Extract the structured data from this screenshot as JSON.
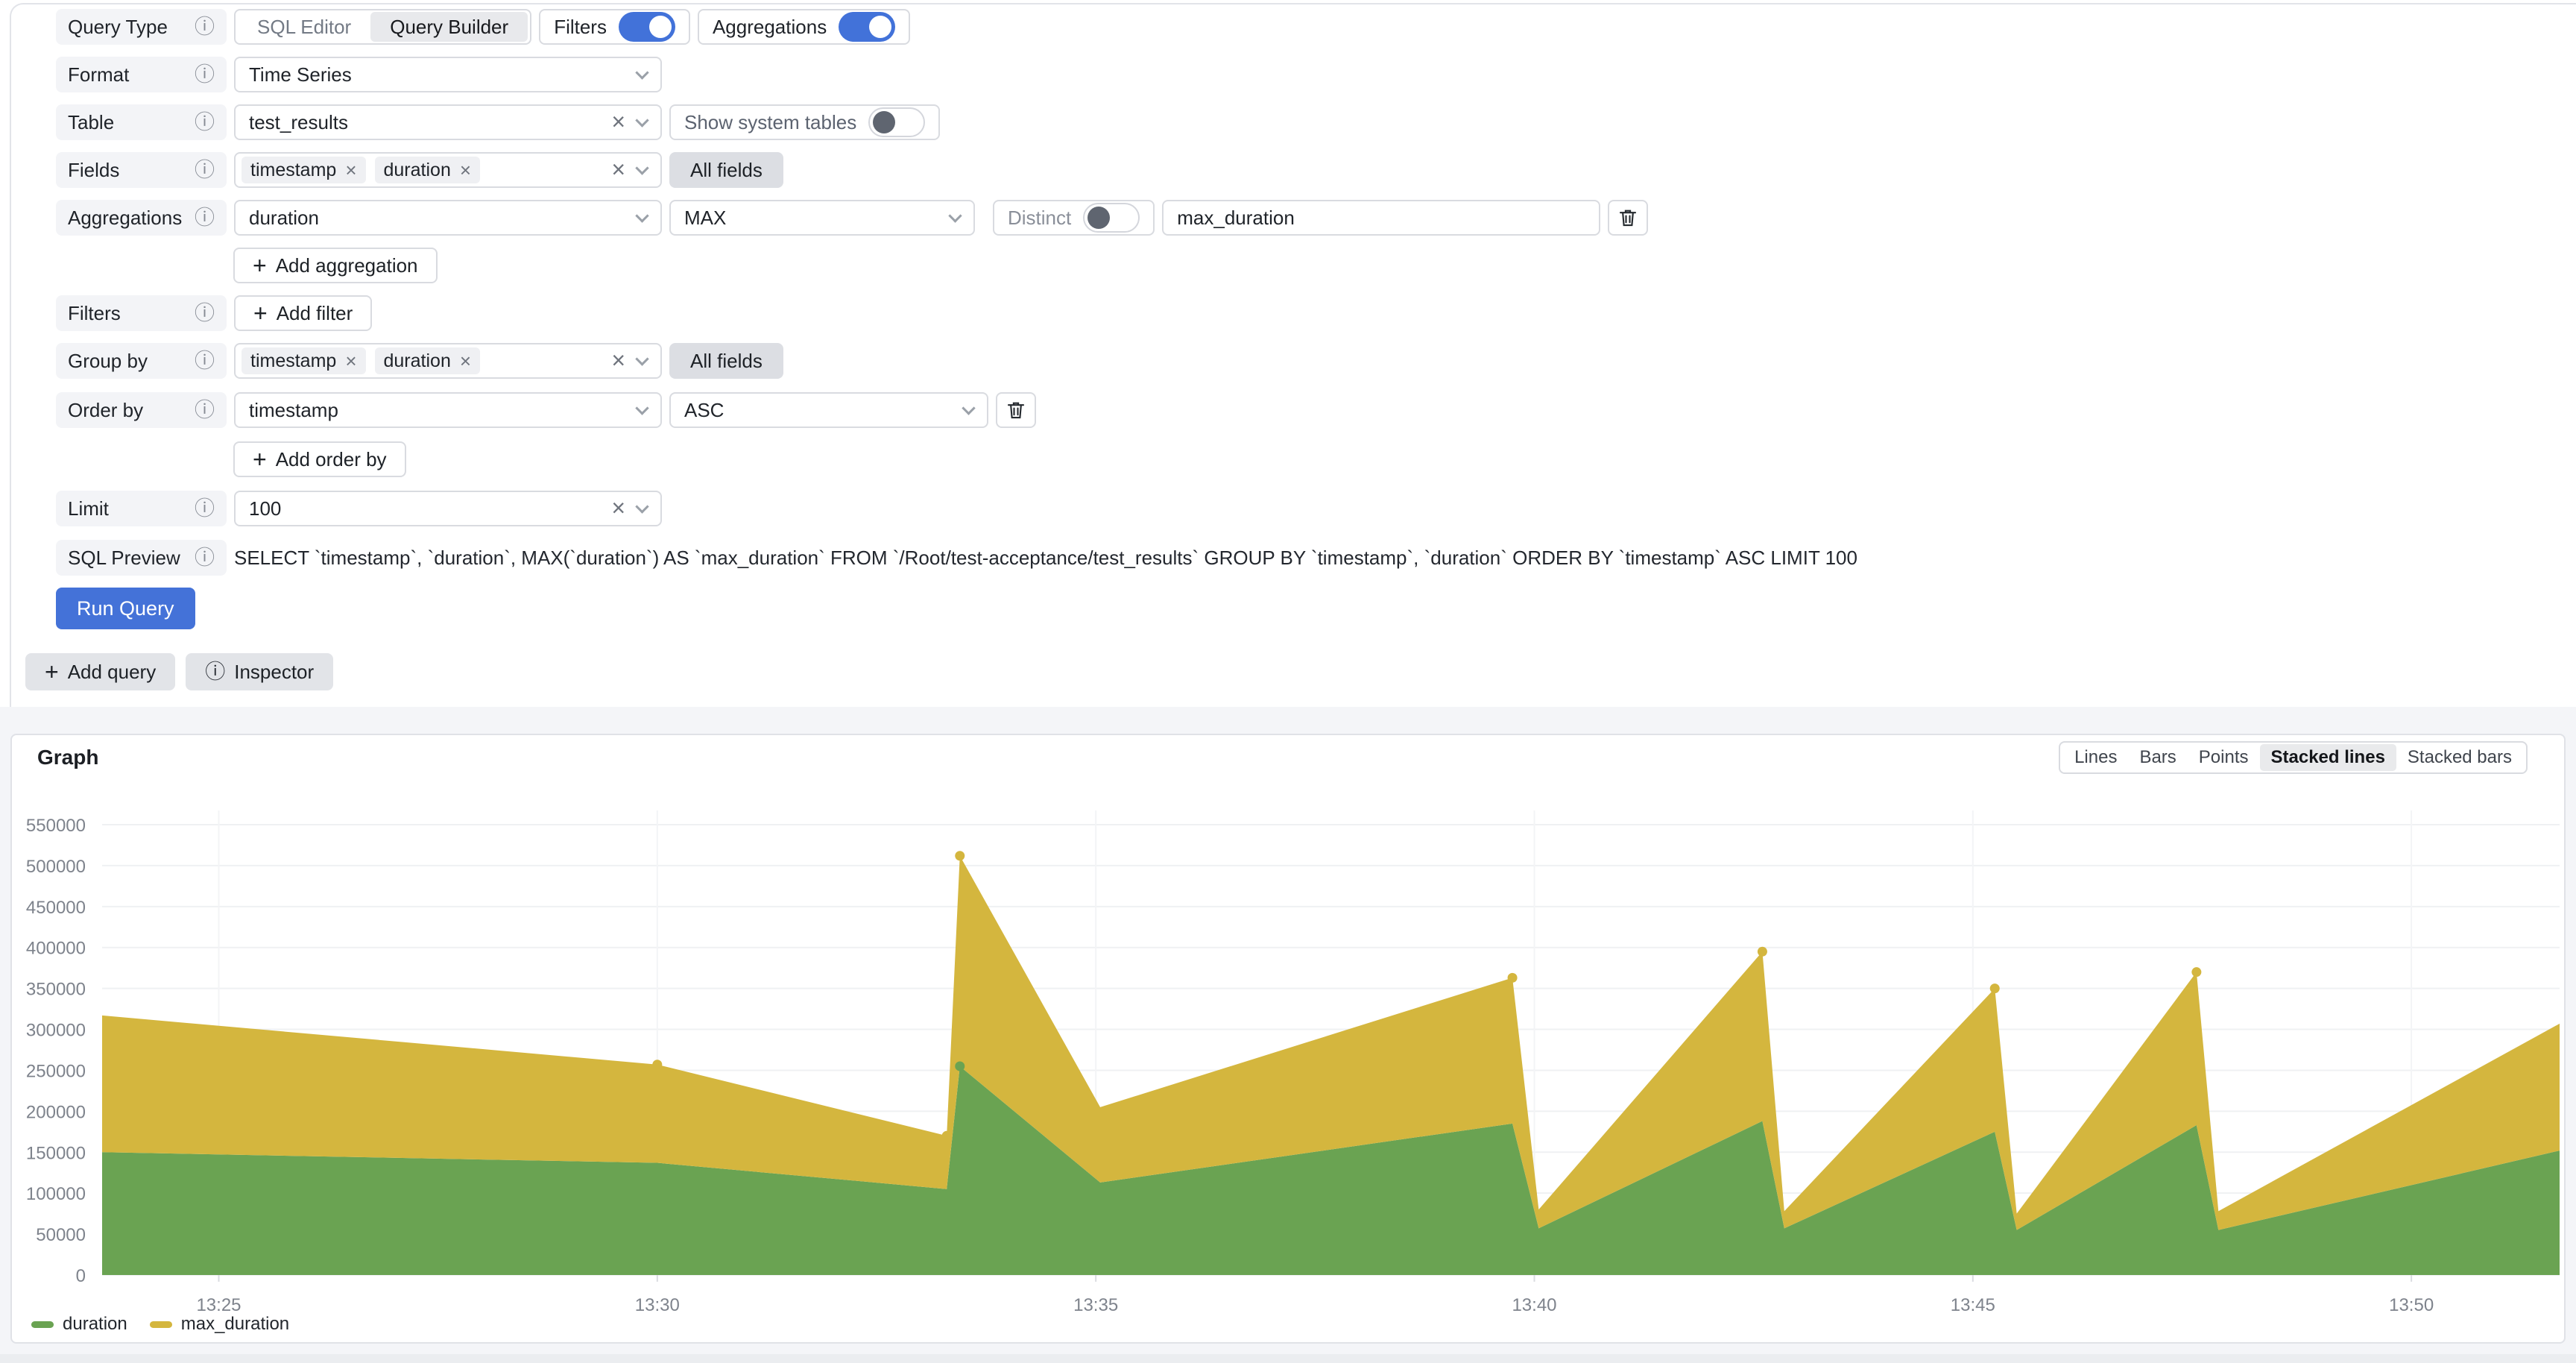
{
  "query_editor": {
    "query_type": {
      "label": "Query Type",
      "options": [
        "SQL Editor",
        "Query Builder"
      ],
      "selected": "Query Builder"
    },
    "filters_toggle": {
      "label": "Filters",
      "on": true
    },
    "aggregations_toggle": {
      "label": "Aggregations",
      "on": true
    },
    "format": {
      "label": "Format",
      "value": "Time Series"
    },
    "table": {
      "label": "Table",
      "value": "test_results",
      "show_system_tables": {
        "label": "Show system tables",
        "on": false
      }
    },
    "fields": {
      "label": "Fields",
      "chips": [
        "timestamp",
        "duration"
      ],
      "all_fields": "All fields"
    },
    "aggregations": {
      "label": "Aggregations",
      "column": "duration",
      "function": "MAX",
      "distinct": {
        "label": "Distinct",
        "on": false
      },
      "alias": "max_duration",
      "add_label": "Add aggregation"
    },
    "filters": {
      "label": "Filters",
      "add_label": "Add filter"
    },
    "group_by": {
      "label": "Group by",
      "chips": [
        "timestamp",
        "duration"
      ],
      "all_fields": "All fields"
    },
    "order_by": {
      "label": "Order by",
      "column": "timestamp",
      "direction": "ASC",
      "add_label": "Add order by"
    },
    "limit": {
      "label": "Limit",
      "value": "100"
    },
    "sql_preview": {
      "label": "SQL Preview",
      "sql": "SELECT `timestamp`, `duration`, MAX(`duration`) AS `max_duration` FROM `/Root/test-acceptance/test_results` GROUP BY `timestamp`, `duration` ORDER BY `timestamp` ASC LIMIT 100"
    },
    "run_button": "Run Query"
  },
  "footer_actions": {
    "add_query": "Add query",
    "inspector": "Inspector"
  },
  "panel": {
    "title": "Graph",
    "modes": [
      "Lines",
      "Bars",
      "Points",
      "Stacked lines",
      "Stacked bars"
    ],
    "selected_mode": "Stacked lines"
  },
  "chart_data": {
    "type": "area",
    "stacked": true,
    "title": "Graph",
    "x_unit": "time",
    "x_range_minutes": [
      23.67,
      51.69
    ],
    "x_tick_labels": [
      "13:25",
      "13:30",
      "13:35",
      "13:40",
      "13:45",
      "13:50"
    ],
    "x_tick_minutes": [
      25,
      30,
      35,
      40,
      45,
      50
    ],
    "ylim": [
      0,
      550000
    ],
    "y_tick_step": 50000,
    "grid": true,
    "legend_position": "bottom-left",
    "x_minutes": [
      23.67,
      30.0,
      33.3,
      33.45,
      35.05,
      39.75,
      40.05,
      42.6,
      42.85,
      45.25,
      45.5,
      47.55,
      47.8,
      51.69
    ],
    "series": [
      {
        "name": "duration",
        "color": "#6aa352",
        "values": [
          150000,
          137000,
          105000,
          255000,
          113000,
          185000,
          57000,
          188000,
          57000,
          175000,
          55000,
          183000,
          55000,
          152000
        ],
        "marker_indices": [
          3
        ]
      },
      {
        "name": "max_duration",
        "color": "#d4b63e",
        "values": [
          167000,
          120000,
          65000,
          257000,
          92000,
          178000,
          23000,
          207000,
          21000,
          175000,
          20000,
          187000,
          23000,
          155000
        ],
        "marker_indices": [
          1,
          2,
          3,
          5,
          7,
          9,
          11
        ]
      }
    ]
  },
  "colors": {
    "accent_blue": "#4272d9",
    "area_green": "#6aa352",
    "area_yellow": "#d4b63e",
    "axis_text": "#7e838c",
    "grid_line": "#eff1f3"
  }
}
